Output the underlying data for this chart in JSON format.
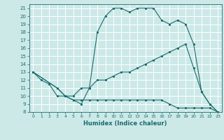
{
  "title": "",
  "xlabel": "Humidex (Indice chaleur)",
  "bg_color": "#cce9e8",
  "grid_color": "#ffffff",
  "line_color": "#1a6b6b",
  "xlim": [
    -0.5,
    23.5
  ],
  "ylim": [
    8,
    21.5
  ],
  "xticks": [
    0,
    1,
    2,
    3,
    4,
    5,
    6,
    7,
    8,
    9,
    10,
    11,
    12,
    13,
    14,
    15,
    16,
    17,
    18,
    19,
    20,
    21,
    22,
    23
  ],
  "yticks": [
    8,
    9,
    10,
    11,
    12,
    13,
    14,
    15,
    16,
    17,
    18,
    19,
    20,
    21
  ],
  "series": [
    {
      "x": [
        0,
        1,
        2,
        3,
        4,
        5,
        6,
        7,
        8,
        9,
        10,
        11,
        12,
        13,
        14,
        15,
        16,
        17,
        18,
        19,
        20,
        21,
        22,
        23
      ],
      "y": [
        13,
        12,
        11.5,
        10,
        10,
        9.5,
        9,
        11,
        18,
        20,
        21,
        21,
        20.5,
        21,
        21,
        21,
        19.5,
        19,
        19.5,
        19,
        16.5,
        10.5,
        9,
        8
      ]
    },
    {
      "x": [
        0,
        3,
        4,
        5,
        6,
        7,
        8,
        9,
        10,
        11,
        12,
        13,
        14,
        15,
        16,
        17,
        18,
        19,
        20,
        21,
        22,
        23
      ],
      "y": [
        13,
        11,
        10,
        10,
        11,
        11,
        12,
        12,
        12.5,
        13,
        13,
        13.5,
        14,
        14.5,
        15,
        15.5,
        16,
        16.5,
        13.5,
        10.5,
        9,
        8
      ]
    },
    {
      "x": [
        0,
        3,
        4,
        5,
        6,
        7,
        8,
        9,
        10,
        11,
        12,
        13,
        14,
        15,
        16,
        17,
        18,
        19,
        20,
        21,
        22,
        23
      ],
      "y": [
        13,
        11,
        10,
        9.5,
        9.5,
        9.5,
        9.5,
        9.5,
        9.5,
        9.5,
        9.5,
        9.5,
        9.5,
        9.5,
        9.5,
        9,
        8.5,
        8.5,
        8.5,
        8.5,
        8.5,
        8
      ]
    }
  ]
}
